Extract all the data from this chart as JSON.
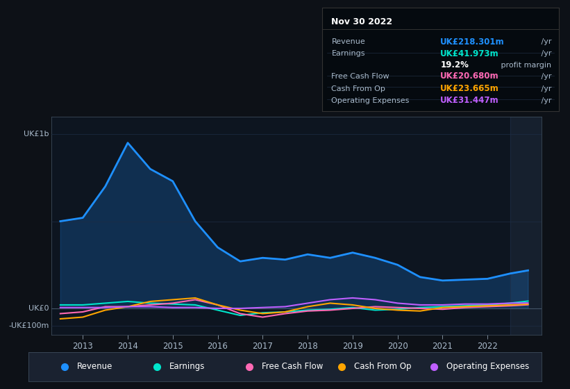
{
  "bg_color": "#0d1117",
  "plot_bg": "#0d1520",
  "title_box": {
    "title": "Nov 30 2022",
    "rows": [
      {
        "label": "Revenue",
        "value": "UK£218.301m",
        "suffix": " /yr",
        "color": "#1e90ff"
      },
      {
        "label": "Earnings",
        "value": "UK£41.973m",
        "suffix": " /yr",
        "color": "#00e5cc"
      },
      {
        "label": "",
        "value": "19.2%",
        "suffix": " profit margin",
        "color": "#ffffff"
      },
      {
        "label": "Free Cash Flow",
        "value": "UK£20.680m",
        "suffix": " /yr",
        "color": "#ff69b4"
      },
      {
        "label": "Cash From Op",
        "value": "UK£23.665m",
        "suffix": " /yr",
        "color": "#ffa500"
      },
      {
        "label": "Operating Expenses",
        "value": "UK£31.447m",
        "suffix": " /yr",
        "color": "#bf5fff"
      }
    ]
  },
  "ylim": [
    -150,
    1100
  ],
  "xlim": [
    2012.3,
    2023.2
  ],
  "years": [
    2012.5,
    2013.0,
    2013.5,
    2014.0,
    2014.5,
    2015.0,
    2015.5,
    2016.0,
    2016.5,
    2017.0,
    2017.5,
    2018.0,
    2018.5,
    2019.0,
    2019.5,
    2020.0,
    2020.5,
    2021.0,
    2021.5,
    2022.0,
    2022.5,
    2022.9
  ],
  "revenue": [
    500,
    520,
    700,
    950,
    800,
    730,
    500,
    350,
    270,
    290,
    280,
    310,
    290,
    320,
    290,
    250,
    180,
    160,
    165,
    170,
    200,
    218
  ],
  "earnings": [
    20,
    20,
    30,
    40,
    30,
    25,
    20,
    -10,
    -40,
    -25,
    -20,
    -10,
    -5,
    5,
    -10,
    -5,
    5,
    10,
    15,
    20,
    30,
    42
  ],
  "free_cash_flow": [
    -30,
    -20,
    10,
    10,
    20,
    30,
    50,
    20,
    -30,
    -50,
    -30,
    -15,
    -10,
    0,
    10,
    5,
    0,
    -5,
    5,
    10,
    15,
    21
  ],
  "cash_from_op": [
    -60,
    -50,
    -10,
    10,
    40,
    50,
    60,
    20,
    -10,
    -30,
    -20,
    10,
    30,
    20,
    0,
    -10,
    -15,
    5,
    10,
    15,
    20,
    24
  ],
  "operating_expenses": [
    5,
    5,
    5,
    10,
    10,
    5,
    5,
    0,
    0,
    5,
    10,
    30,
    50,
    60,
    50,
    30,
    20,
    20,
    25,
    25,
    30,
    31
  ],
  "revenue_color": "#1e90ff",
  "earnings_color": "#00e5cc",
  "fcf_color": "#ff69b4",
  "cfo_color": "#ffa500",
  "opex_color": "#bf5fff",
  "grid_color": "#1e2d45",
  "axis_color": "#445566",
  "text_color": "#aabbcc",
  "shade_x": 2022.5,
  "shade_color": "#1a2535",
  "legend_bg": "#1a2230",
  "legend_items": [
    {
      "label": "Revenue",
      "color": "#1e90ff"
    },
    {
      "label": "Earnings",
      "color": "#00e5cc"
    },
    {
      "label": "Free Cash Flow",
      "color": "#ff69b4"
    },
    {
      "label": "Cash From Op",
      "color": "#ffa500"
    },
    {
      "label": "Operating Expenses",
      "color": "#bf5fff"
    }
  ],
  "xticks": [
    2013,
    2014,
    2015,
    2016,
    2017,
    2018,
    2019,
    2020,
    2021,
    2022
  ],
  "hlines": [
    1000,
    500,
    0,
    -100
  ],
  "ylabel_positions": [
    {
      "y": 1000,
      "label": "UK£1b"
    },
    {
      "y": 0,
      "label": "UK£0"
    },
    {
      "y": -100,
      "label": "-UK£100m"
    }
  ]
}
